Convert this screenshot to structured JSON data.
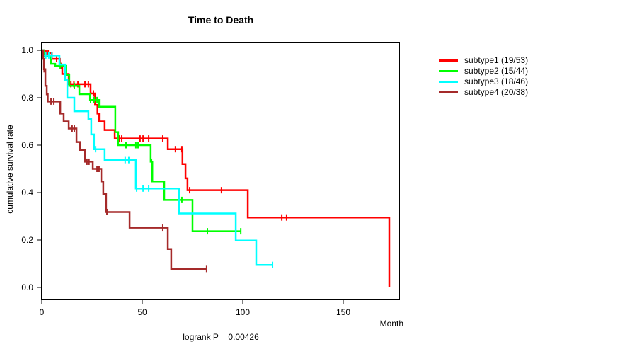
{
  "chart_data": {
    "type": "line",
    "subtype": "kaplan-meier-step",
    "title": "Time to Death",
    "xlabel": "Month",
    "ylabel": "cumulative survival rate",
    "annotation": "logrank P = 0.00426",
    "x_ticks": [
      0,
      50,
      100,
      150
    ],
    "y_ticks": [
      0.0,
      0.2,
      0.4,
      0.6,
      0.8,
      1.0
    ],
    "xlim": [
      0,
      178
    ],
    "ylim": [
      0.0,
      1.0
    ],
    "grid": false,
    "legend_position": "top-right-outside",
    "series": [
      {
        "name": "subtype1",
        "label": "subtype1 (19/53)",
        "color": "#FF0000",
        "steps": [
          [
            0,
            1.0
          ],
          [
            1,
            0.988
          ],
          [
            5,
            0.964
          ],
          [
            9,
            0.934
          ],
          [
            10.2,
            0.9
          ],
          [
            13.4,
            0.857
          ],
          [
            24.3,
            0.818
          ],
          [
            26.5,
            0.77
          ],
          [
            27.7,
            0.733
          ],
          [
            28.5,
            0.7
          ],
          [
            31.3,
            0.664
          ],
          [
            36.3,
            0.628
          ],
          [
            62.7,
            0.583
          ],
          [
            70,
            0.52
          ],
          [
            71.5,
            0.46
          ],
          [
            72.5,
            0.41
          ],
          [
            102.5,
            0.295
          ],
          [
            172.9,
            0.0
          ]
        ],
        "censors": [
          [
            2.1,
            0.988
          ],
          [
            3.2,
            0.988
          ],
          [
            7.4,
            0.964
          ],
          [
            9.5,
            0.934
          ],
          [
            14.5,
            0.857
          ],
          [
            16,
            0.857
          ],
          [
            18,
            0.857
          ],
          [
            21.5,
            0.857
          ],
          [
            23.2,
            0.857
          ],
          [
            25.7,
            0.818
          ],
          [
            38.4,
            0.628
          ],
          [
            39.8,
            0.628
          ],
          [
            48.9,
            0.628
          ],
          [
            50.4,
            0.628
          ],
          [
            53.2,
            0.628
          ],
          [
            60.2,
            0.628
          ],
          [
            66.5,
            0.583
          ],
          [
            69.7,
            0.583
          ],
          [
            73.6,
            0.41
          ],
          [
            89.4,
            0.41
          ],
          [
            119.4,
            0.295
          ],
          [
            121.8,
            0.295
          ]
        ]
      },
      {
        "name": "subtype2",
        "label": "subtype2 (15/44)",
        "color": "#00FF00",
        "steps": [
          [
            0,
            1.0
          ],
          [
            1,
            0.977
          ],
          [
            4.6,
            0.943
          ],
          [
            6.7,
            0.934
          ],
          [
            12,
            0.895
          ],
          [
            13.7,
            0.85
          ],
          [
            18.7,
            0.815
          ],
          [
            24,
            0.79
          ],
          [
            28.5,
            0.762
          ],
          [
            36.6,
            0.655
          ],
          [
            38,
            0.6
          ],
          [
            54.2,
            0.53
          ],
          [
            55,
            0.447
          ],
          [
            60.9,
            0.369
          ],
          [
            75,
            0.237
          ],
          [
            99,
            0.237
          ]
        ],
        "censors": [
          [
            9.2,
            0.934
          ],
          [
            16.2,
            0.85
          ],
          [
            24.3,
            0.79
          ],
          [
            26,
            0.79
          ],
          [
            27.5,
            0.79
          ],
          [
            41.9,
            0.6
          ],
          [
            46.8,
            0.6
          ],
          [
            47.9,
            0.6
          ],
          [
            54.6,
            0.53
          ],
          [
            69.7,
            0.369
          ],
          [
            82.4,
            0.237
          ],
          [
            99,
            0.237
          ]
        ]
      },
      {
        "name": "subtype3",
        "label": "subtype3 (18/46)",
        "color": "#00FFFF",
        "steps": [
          [
            0,
            1.0
          ],
          [
            0.7,
            0.978
          ],
          [
            8.8,
            0.94
          ],
          [
            11.6,
            0.875
          ],
          [
            12.7,
            0.8
          ],
          [
            16.2,
            0.743
          ],
          [
            23.2,
            0.71
          ],
          [
            24.6,
            0.645
          ],
          [
            26,
            0.583
          ],
          [
            31.3,
            0.537
          ],
          [
            46.8,
            0.417
          ],
          [
            68.3,
            0.312
          ],
          [
            96.5,
            0.198
          ],
          [
            106.7,
            0.095
          ],
          [
            114.8,
            0.095
          ]
        ],
        "censors": [
          [
            2,
            0.978
          ],
          [
            3.5,
            0.978
          ],
          [
            5,
            0.978
          ],
          [
            26.8,
            0.583
          ],
          [
            41.5,
            0.537
          ],
          [
            43.3,
            0.537
          ],
          [
            47.2,
            0.417
          ],
          [
            50.4,
            0.417
          ],
          [
            53.2,
            0.417
          ],
          [
            114.8,
            0.095
          ]
        ]
      },
      {
        "name": "subtype4",
        "label": "subtype4 (20/38)",
        "color": "#A52A2A",
        "steps": [
          [
            0,
            1.0
          ],
          [
            0.7,
            0.964
          ],
          [
            1.1,
            0.92
          ],
          [
            1.8,
            0.85
          ],
          [
            2.5,
            0.814
          ],
          [
            3,
            0.784
          ],
          [
            9.2,
            0.733
          ],
          [
            10.9,
            0.7
          ],
          [
            13.4,
            0.67
          ],
          [
            17.3,
            0.613
          ],
          [
            19,
            0.58
          ],
          [
            21.5,
            0.53
          ],
          [
            25.4,
            0.5
          ],
          [
            29.6,
            0.447
          ],
          [
            30.6,
            0.393
          ],
          [
            32,
            0.318
          ],
          [
            43.7,
            0.252
          ],
          [
            62.7,
            0.162
          ],
          [
            64.4,
            0.078
          ],
          [
            82,
            0.078
          ]
        ],
        "censors": [
          [
            1.2,
            0.92
          ],
          [
            4.6,
            0.784
          ],
          [
            6,
            0.784
          ],
          [
            15.1,
            0.67
          ],
          [
            16.2,
            0.67
          ],
          [
            22.5,
            0.53
          ],
          [
            23.5,
            0.53
          ],
          [
            27.5,
            0.5
          ],
          [
            28.5,
            0.5
          ],
          [
            32.4,
            0.318
          ],
          [
            60.2,
            0.252
          ],
          [
            82,
            0.078
          ]
        ]
      }
    ]
  }
}
